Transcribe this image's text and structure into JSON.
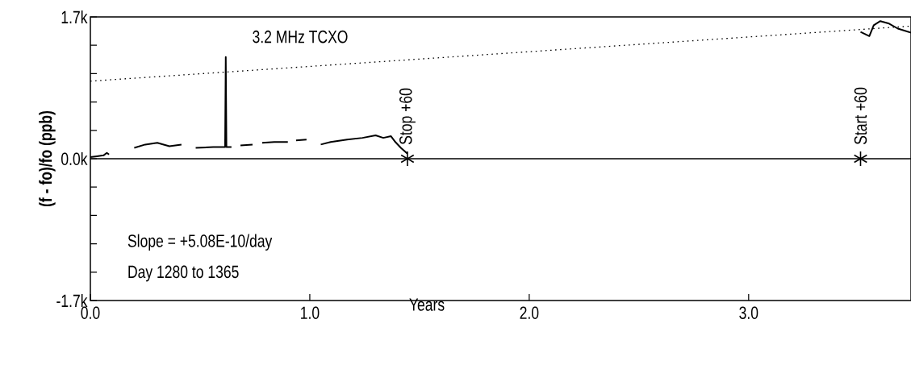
{
  "chart_data": {
    "type": "line",
    "xlabel": "Years",
    "ylabel": "(f - fo)/fo (ppb)",
    "xlim": [
      0,
      3.74
    ],
    "ylim": [
      -1700,
      1700
    ],
    "xticks": [
      {
        "value": 0,
        "label": "0.0"
      },
      {
        "value": 1,
        "label": "1.0"
      },
      {
        "value": 2,
        "label": "2.0"
      },
      {
        "value": 3,
        "label": "3.0"
      }
    ],
    "yticks": [
      {
        "value": -1700,
        "label": "-1.7k"
      },
      {
        "value": -1360,
        "label": null
      },
      {
        "value": -1020,
        "label": null
      },
      {
        "value": -680,
        "label": null
      },
      {
        "value": -340,
        "label": null
      },
      {
        "value": 0,
        "label": "0.0k"
      },
      {
        "value": 340,
        "label": null
      },
      {
        "value": 680,
        "label": null
      },
      {
        "value": 1020,
        "label": null
      },
      {
        "value": 1360,
        "label": null
      },
      {
        "value": 1700,
        "label": "1.7k"
      }
    ],
    "grid": false,
    "series": [
      {
        "color": "#000000",
        "line_style": "solid",
        "x": [
          0,
          0.03,
          0.06,
          0.075,
          0.085,
          0.09,
          0.2,
          0.25,
          0.305,
          0.36,
          0.415,
          0.44,
          0.48,
          0.56,
          0.614,
          0.617,
          0.62,
          0.643,
          0.66,
          0.684,
          0.739,
          0.76,
          0.783,
          0.838,
          0.9,
          0.92,
          0.9375,
          0.985,
          1.02,
          1.05,
          1.095,
          1.17,
          1.24,
          1.3,
          1.335,
          1.37,
          1.39,
          1.415,
          1.445,
          2.0,
          3.51,
          3.55,
          3.57,
          3.6,
          3.64,
          3.68,
          3.74
        ],
        "values": [
          20,
          30,
          40,
          70,
          50,
          null,
          130,
          170,
          190,
          150,
          170,
          null,
          130,
          140,
          140,
          1220,
          140,
          140,
          null,
          160,
          170,
          null,
          190,
          200,
          200,
          null,
          220,
          230,
          null,
          170,
          200,
          230,
          250,
          280,
          250,
          270,
          200,
          130,
          60,
          null,
          1520,
          1470,
          1600,
          1650,
          1620,
          1560,
          1510
        ]
      },
      {
        "color": "#000000",
        "line_style": "dotted",
        "x": [
          0,
          3.74
        ],
        "values": [
          930,
          1590
        ]
      },
      {
        "type": "scatter",
        "color": "#000000",
        "marker": "cross",
        "x": [
          1.445,
          3.51
        ],
        "values": [
          0,
          0
        ]
      }
    ],
    "ref_lines": [
      {
        "axis": "y",
        "value": 0,
        "color": "#000000"
      }
    ],
    "annotations": [
      "3.2 MHz TCXO",
      "Slope = +5.08E-10/day",
      "Day 1280 to 1365",
      {
        "text": "Stop +60",
        "x": 1.445,
        "y": 0
      },
      {
        "text": "Start +60",
        "x": 3.51,
        "y": 0
      }
    ]
  }
}
